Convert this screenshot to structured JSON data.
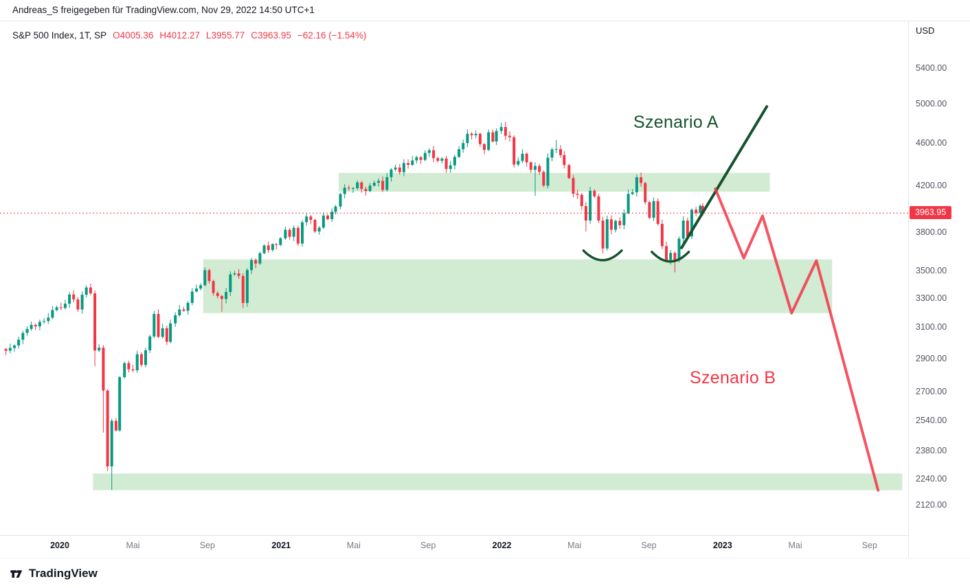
{
  "header": {
    "attribution": "Andreas_S freigegeben für TradingView.com, Nov 29, 2022 14:50 UTC+1"
  },
  "legend": {
    "title": "S&P 500 Index, 1T, SP",
    "open": "O4005.36",
    "high": "H4012.27",
    "low": "L3955.77",
    "close": "C3963.95",
    "change": "−62.16 (−1.54%)"
  },
  "price_scale": {
    "currency": "USD",
    "last_price": "3963.95",
    "ticks": [
      "5400.00",
      "5000.00",
      "4600.00",
      "4200.00",
      "3800.00",
      "3500.00",
      "3300.00",
      "3100.00",
      "2900.00",
      "2700.00",
      "2540.00",
      "2380.00",
      "2240.00",
      "2120.00"
    ]
  },
  "time_scale": {
    "ticks": [
      {
        "label": "2020",
        "date": "2020-01-01",
        "major": true
      },
      {
        "label": "Mai",
        "date": "2020-05-01",
        "major": false
      },
      {
        "label": "Sep",
        "date": "2020-09-01",
        "major": false
      },
      {
        "label": "2021",
        "date": "2021-01-01",
        "major": true
      },
      {
        "label": "Mai",
        "date": "2021-05-01",
        "major": false
      },
      {
        "label": "Sep",
        "date": "2021-09-01",
        "major": false
      },
      {
        "label": "2022",
        "date": "2022-01-01",
        "major": true
      },
      {
        "label": "Mai",
        "date": "2022-05-01",
        "major": false
      },
      {
        "label": "Sep",
        "date": "2022-09-01",
        "major": false
      },
      {
        "label": "2023",
        "date": "2023-01-01",
        "major": true
      },
      {
        "label": "Mai",
        "date": "2023-05-01",
        "major": false
      },
      {
        "label": "Sep",
        "date": "2023-09-01",
        "major": false
      }
    ]
  },
  "branding": {
    "wordmark": "TradingView"
  },
  "chart_data": {
    "type": "candlestick",
    "symbol": "S&P 500 Index",
    "interval": "1T",
    "exchange": "SP",
    "currency": "USD",
    "price_scale_type": "log",
    "grid": "off",
    "legend_position": "top-left",
    "visible_price_range": [
      1990,
      5990
    ],
    "last_price": 3963.95,
    "last_bar": {
      "open": 4005.36,
      "high": 4012.27,
      "low": 3955.77,
      "close": 3963.95,
      "change": -62.16,
      "change_pct": -1.54
    },
    "colors": {
      "up": "#089981",
      "down": "#f23645",
      "zone_fill": "rgba(76,175,80,0.25)",
      "scenario_a": "#14532d",
      "scenario_b": "#f23645"
    },
    "series_resolution": "1W",
    "weekly_closes": [
      [
        "2019-10-04",
        2952
      ],
      [
        "2019-10-11",
        2970
      ],
      [
        "2019-10-18",
        2986
      ],
      [
        "2019-10-25",
        3023
      ],
      [
        "2019-11-01",
        3067
      ],
      [
        "2019-11-08",
        3093
      ],
      [
        "2019-11-15",
        3120
      ],
      [
        "2019-11-22",
        3110
      ],
      [
        "2019-11-29",
        3141
      ],
      [
        "2019-12-06",
        3146
      ],
      [
        "2019-12-13",
        3169
      ],
      [
        "2019-12-20",
        3221
      ],
      [
        "2019-12-27",
        3240
      ],
      [
        "2020-01-03",
        3235
      ],
      [
        "2020-01-10",
        3265
      ],
      [
        "2020-01-17",
        3330
      ],
      [
        "2020-01-24",
        3295
      ],
      [
        "2020-01-31",
        3225
      ],
      [
        "2020-02-07",
        3328
      ],
      [
        "2020-02-14",
        3380
      ],
      [
        "2020-02-21",
        3338
      ],
      [
        "2020-02-28",
        2954
      ],
      [
        "2020-03-06",
        2972
      ],
      [
        "2020-03-13",
        2711
      ],
      [
        "2020-03-20",
        2305
      ],
      [
        "2020-03-27",
        2541
      ],
      [
        "2020-04-03",
        2489
      ],
      [
        "2020-04-09",
        2790
      ],
      [
        "2020-04-17",
        2875
      ],
      [
        "2020-04-24",
        2837
      ],
      [
        "2020-05-01",
        2831
      ],
      [
        "2020-05-08",
        2930
      ],
      [
        "2020-05-15",
        2864
      ],
      [
        "2020-05-22",
        2955
      ],
      [
        "2020-05-29",
        3044
      ],
      [
        "2020-06-05",
        3194
      ],
      [
        "2020-06-12",
        3041
      ],
      [
        "2020-06-19",
        3098
      ],
      [
        "2020-06-26",
        3009
      ],
      [
        "2020-07-02",
        3130
      ],
      [
        "2020-07-10",
        3185
      ],
      [
        "2020-07-17",
        3225
      ],
      [
        "2020-07-24",
        3216
      ],
      [
        "2020-07-31",
        3271
      ],
      [
        "2020-08-07",
        3351
      ],
      [
        "2020-08-14",
        3373
      ],
      [
        "2020-08-21",
        3397
      ],
      [
        "2020-08-28",
        3508
      ],
      [
        "2020-09-04",
        3427
      ],
      [
        "2020-09-11",
        3341
      ],
      [
        "2020-09-18",
        3319
      ],
      [
        "2020-09-25",
        3298
      ],
      [
        "2020-10-02",
        3348
      ],
      [
        "2020-10-09",
        3477
      ],
      [
        "2020-10-16",
        3484
      ],
      [
        "2020-10-23",
        3465
      ],
      [
        "2020-10-30",
        3270
      ],
      [
        "2020-11-06",
        3509
      ],
      [
        "2020-11-13",
        3585
      ],
      [
        "2020-11-20",
        3558
      ],
      [
        "2020-11-27",
        3638
      ],
      [
        "2020-12-04",
        3699
      ],
      [
        "2020-12-11",
        3663
      ],
      [
        "2020-12-18",
        3709
      ],
      [
        "2020-12-24",
        3703
      ],
      [
        "2020-12-31",
        3756
      ],
      [
        "2021-01-08",
        3825
      ],
      [
        "2021-01-15",
        3768
      ],
      [
        "2021-01-22",
        3841
      ],
      [
        "2021-01-29",
        3714
      ],
      [
        "2021-02-05",
        3887
      ],
      [
        "2021-02-12",
        3935
      ],
      [
        "2021-02-19",
        3907
      ],
      [
        "2021-02-26",
        3811
      ],
      [
        "2021-03-05",
        3842
      ],
      [
        "2021-03-12",
        3943
      ],
      [
        "2021-03-19",
        3913
      ],
      [
        "2021-03-26",
        3975
      ],
      [
        "2021-04-01",
        4020
      ],
      [
        "2021-04-09",
        4129
      ],
      [
        "2021-04-16",
        4185
      ],
      [
        "2021-04-23",
        4180
      ],
      [
        "2021-04-30",
        4181
      ],
      [
        "2021-05-07",
        4233
      ],
      [
        "2021-05-14",
        4174
      ],
      [
        "2021-05-21",
        4156
      ],
      [
        "2021-05-28",
        4204
      ],
      [
        "2021-06-04",
        4230
      ],
      [
        "2021-06-11",
        4247
      ],
      [
        "2021-06-18",
        4166
      ],
      [
        "2021-06-25",
        4281
      ],
      [
        "2021-07-02",
        4352
      ],
      [
        "2021-07-09",
        4370
      ],
      [
        "2021-07-16",
        4327
      ],
      [
        "2021-07-23",
        4412
      ],
      [
        "2021-07-30",
        4395
      ],
      [
        "2021-08-06",
        4437
      ],
      [
        "2021-08-13",
        4468
      ],
      [
        "2021-08-20",
        4442
      ],
      [
        "2021-08-27",
        4509
      ],
      [
        "2021-09-03",
        4535
      ],
      [
        "2021-09-10",
        4459
      ],
      [
        "2021-09-17",
        4433
      ],
      [
        "2021-09-24",
        4455
      ],
      [
        "2021-10-01",
        4357
      ],
      [
        "2021-10-08",
        4391
      ],
      [
        "2021-10-15",
        4471
      ],
      [
        "2021-10-22",
        4545
      ],
      [
        "2021-10-29",
        4605
      ],
      [
        "2021-11-05",
        4698
      ],
      [
        "2021-11-12",
        4683
      ],
      [
        "2021-11-19",
        4698
      ],
      [
        "2021-11-26",
        4595
      ],
      [
        "2021-12-03",
        4538
      ],
      [
        "2021-12-10",
        4712
      ],
      [
        "2021-12-17",
        4621
      ],
      [
        "2021-12-23",
        4726
      ],
      [
        "2021-12-31",
        4766
      ],
      [
        "2022-01-07",
        4677
      ],
      [
        "2022-01-14",
        4663
      ],
      [
        "2022-01-21",
        4398
      ],
      [
        "2022-01-28",
        4432
      ],
      [
        "2022-02-04",
        4501
      ],
      [
        "2022-02-11",
        4419
      ],
      [
        "2022-02-18",
        4349
      ],
      [
        "2022-02-25",
        4385
      ],
      [
        "2022-03-04",
        4329
      ],
      [
        "2022-03-11",
        4204
      ],
      [
        "2022-03-18",
        4463
      ],
      [
        "2022-03-25",
        4543
      ],
      [
        "2022-04-01",
        4546
      ],
      [
        "2022-04-08",
        4488
      ],
      [
        "2022-04-14",
        4393
      ],
      [
        "2022-04-22",
        4272
      ],
      [
        "2022-04-29",
        4132
      ],
      [
        "2022-05-06",
        4123
      ],
      [
        "2022-05-13",
        4024
      ],
      [
        "2022-05-20",
        3901
      ],
      [
        "2022-05-27",
        4158
      ],
      [
        "2022-06-03",
        4109
      ],
      [
        "2022-06-10",
        3901
      ],
      [
        "2022-06-17",
        3675
      ],
      [
        "2022-06-24",
        3912
      ],
      [
        "2022-07-01",
        3825
      ],
      [
        "2022-07-08",
        3899
      ],
      [
        "2022-07-15",
        3863
      ],
      [
        "2022-07-22",
        3962
      ],
      [
        "2022-07-29",
        4130
      ],
      [
        "2022-08-05",
        4145
      ],
      [
        "2022-08-12",
        4280
      ],
      [
        "2022-08-19",
        4228
      ],
      [
        "2022-08-26",
        4058
      ],
      [
        "2022-09-02",
        3924
      ],
      [
        "2022-09-09",
        4067
      ],
      [
        "2022-09-16",
        3873
      ],
      [
        "2022-09-23",
        3693
      ],
      [
        "2022-09-30",
        3586
      ],
      [
        "2022-10-07",
        3640
      ],
      [
        "2022-10-14",
        3583
      ],
      [
        "2022-10-21",
        3753
      ],
      [
        "2022-10-28",
        3901
      ],
      [
        "2022-11-04",
        3771
      ],
      [
        "2022-11-11",
        3993
      ],
      [
        "2022-11-18",
        3965
      ],
      [
        "2022-11-25",
        4026
      ],
      [
        "2022-11-29",
        3963.95
      ]
    ],
    "wick_overrides": {
      "2020-02-28": {
        "low": 2856
      },
      "2020-03-13": {
        "low": 2478
      },
      "2020-03-20": {
        "low": 2281
      },
      "2020-03-27": {
        "low": 2192
      },
      "2020-09-25": {
        "low": 3209
      },
      "2020-10-30": {
        "low": 3234
      },
      "2022-01-07": {
        "high": 4818
      },
      "2022-02-25": {
        "low": 4114
      },
      "2022-04-01": {
        "high": 4637
      },
      "2022-05-20": {
        "low": 3810
      },
      "2022-06-17": {
        "low": 3637
      },
      "2022-08-19": {
        "high": 4325
      },
      "2022-10-14": {
        "low": 3492
      }
    },
    "zones": [
      {
        "name": "resistance-zone",
        "price_top": 4320,
        "price_bottom": 4150,
        "start": "2021-04-06",
        "end": "2023-03-20"
      },
      {
        "name": "mid-support-zone",
        "price_top": 3590,
        "price_bottom": 3200,
        "start": "2020-08-25",
        "end": "2023-07-01"
      },
      {
        "name": "bottom-support-zone",
        "price_top": 2270,
        "price_bottom": 2190,
        "start": "2020-02-25",
        "end": "2023-10-25"
      }
    ],
    "scenarios": [
      {
        "name": "Szenario A",
        "color": "#14532d",
        "opacity": 1,
        "points": [
          [
            "2022-10-25",
            3680
          ],
          [
            "2023-03-15",
            4980
          ]
        ]
      },
      {
        "name": "Szenario B",
        "color": "#f23645",
        "opacity": 0.85,
        "points": [
          [
            "2022-12-20",
            4175
          ],
          [
            "2023-02-05",
            3600
          ],
          [
            "2023-03-08",
            3940
          ],
          [
            "2023-04-25",
            3200
          ],
          [
            "2023-06-05",
            3580
          ],
          [
            "2023-09-15",
            2190
          ]
        ]
      }
    ],
    "double_bottom_arcs": [
      {
        "start": "2022-05-16",
        "end": "2022-07-18",
        "price": 3610
      },
      {
        "start": "2022-09-06",
        "end": "2022-11-06",
        "price": 3600
      }
    ]
  }
}
